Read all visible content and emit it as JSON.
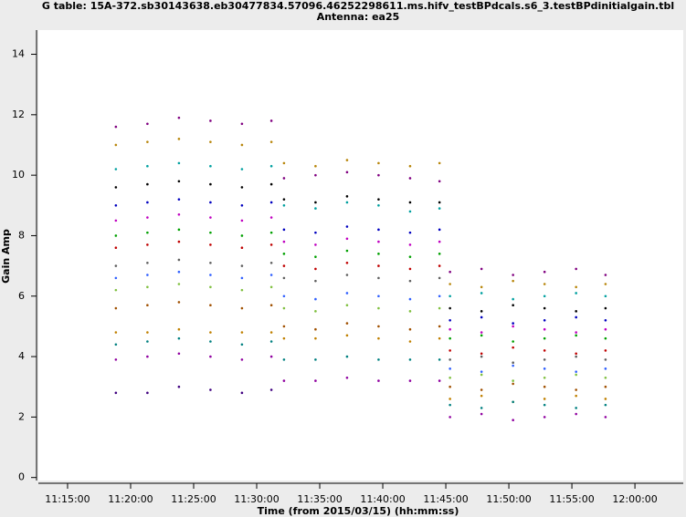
{
  "chart_data": {
    "type": "scatter",
    "title": "G table: 15A-372.sb30143638.eb30477834.57096.46252298611.ms.hifv_testBPdcals.s6_3.testBPdinitialgain.tbl",
    "subtitle": "Antenna: ea25",
    "x_label": "Time (from 2015/03/15) (hh:mm:ss)",
    "y_label": "Gain Amp",
    "xlim": [
      40361,
      43430
    ],
    "ylim": [
      -0.1,
      14.8
    ],
    "xticks": [
      {
        "value": 40500,
        "label": "11:15:00"
      },
      {
        "value": 40800,
        "label": "11:20:00"
      },
      {
        "value": 41100,
        "label": "11:25:00"
      },
      {
        "value": 41400,
        "label": "11:30:00"
      },
      {
        "value": 41700,
        "label": "11:35:00"
      },
      {
        "value": 42000,
        "label": "11:40:00"
      },
      {
        "value": 42300,
        "label": "11:45:00"
      },
      {
        "value": 42600,
        "label": "11:50:00"
      },
      {
        "value": 42900,
        "label": "11:55:00"
      },
      {
        "value": 43200,
        "label": "12:00:00"
      }
    ],
    "yticks": [
      0,
      2,
      4,
      6,
      8,
      10,
      12,
      14
    ],
    "x": [
      40730,
      40880,
      41030,
      41180,
      41330,
      41470,
      41530,
      41680,
      41830,
      41980,
      42130,
      42270,
      42320,
      42470,
      42620,
      42770,
      42920,
      43060
    ],
    "series": [
      {
        "color": "#800080",
        "values": [
          11.6,
          11.7,
          11.9,
          11.8,
          11.7,
          11.8,
          9.9,
          10.0,
          10.1,
          10.0,
          9.9,
          9.8,
          6.8,
          6.9,
          6.7,
          6.8,
          6.9,
          6.7
        ]
      },
      {
        "color": "#b8860b",
        "values": [
          11.0,
          11.1,
          11.2,
          11.1,
          11.0,
          11.1,
          10.4,
          10.3,
          10.5,
          10.4,
          10.3,
          10.4,
          6.4,
          6.3,
          6.5,
          6.4,
          6.3,
          6.4
        ]
      },
      {
        "color": "#00a0a0",
        "values": [
          10.2,
          10.3,
          10.4,
          10.3,
          10.2,
          10.3,
          9.0,
          8.9,
          9.1,
          9.0,
          8.8,
          8.9,
          6.0,
          6.1,
          5.9,
          6.0,
          6.1,
          6.0
        ]
      },
      {
        "color": "#000000",
        "values": [
          9.6,
          9.7,
          9.8,
          9.7,
          9.6,
          9.7,
          9.2,
          9.1,
          9.3,
          9.2,
          9.1,
          9.1,
          5.6,
          5.5,
          5.7,
          5.6,
          5.5,
          5.6
        ]
      },
      {
        "color": "#0000c0",
        "values": [
          9.0,
          9.1,
          9.2,
          9.1,
          9.0,
          9.1,
          8.2,
          8.1,
          8.3,
          8.2,
          8.1,
          8.2,
          5.2,
          5.3,
          5.1,
          5.2,
          5.3,
          5.2
        ]
      },
      {
        "color": "#c000c0",
        "values": [
          8.5,
          8.6,
          8.7,
          8.6,
          8.5,
          8.6,
          7.8,
          7.7,
          7.9,
          7.8,
          7.7,
          7.8,
          4.9,
          4.8,
          5.0,
          4.9,
          4.8,
          4.9
        ]
      },
      {
        "color": "#00a000",
        "values": [
          8.0,
          8.1,
          8.2,
          8.1,
          8.0,
          8.1,
          7.4,
          7.3,
          7.5,
          7.4,
          7.3,
          7.4,
          4.6,
          4.7,
          4.5,
          4.6,
          4.7,
          4.6
        ]
      },
      {
        "color": "#c00000",
        "values": [
          7.6,
          7.7,
          7.8,
          7.7,
          7.6,
          7.7,
          7.0,
          6.9,
          7.1,
          7.0,
          6.9,
          7.0,
          4.2,
          4.1,
          4.3,
          4.2,
          4.1,
          4.2
        ]
      },
      {
        "color": "#606060",
        "values": [
          7.0,
          7.1,
          7.2,
          7.1,
          7.0,
          7.1,
          6.6,
          6.5,
          6.7,
          6.6,
          6.5,
          6.6,
          3.9,
          4.0,
          3.8,
          3.9,
          4.0,
          3.9
        ]
      },
      {
        "color": "#3060ff",
        "values": [
          6.6,
          6.7,
          6.8,
          6.7,
          6.6,
          6.7,
          6.0,
          5.9,
          6.1,
          6.0,
          5.9,
          6.0,
          3.6,
          3.5,
          3.7,
          3.6,
          3.5,
          3.6
        ]
      },
      {
        "color": "#80c040",
        "values": [
          6.2,
          6.3,
          6.4,
          6.3,
          6.2,
          6.3,
          5.6,
          5.5,
          5.7,
          5.6,
          5.5,
          5.6,
          3.3,
          3.4,
          3.2,
          3.3,
          3.4,
          3.3
        ]
      },
      {
        "color": "#a05000",
        "values": [
          5.6,
          5.7,
          5.8,
          5.7,
          5.6,
          5.7,
          5.0,
          4.9,
          5.1,
          5.0,
          4.9,
          5.0,
          3.0,
          2.9,
          3.1,
          3.0,
          2.9,
          3.0
        ]
      },
      {
        "color": "#c08000",
        "values": [
          4.8,
          4.8,
          4.9,
          4.8,
          4.8,
          4.8,
          4.6,
          4.6,
          4.7,
          4.6,
          4.5,
          4.6,
          2.6,
          2.7,
          2.5,
          2.6,
          2.7,
          2.6
        ]
      },
      {
        "color": "#008080",
        "values": [
          4.4,
          4.5,
          4.6,
          4.5,
          4.4,
          4.5,
          3.9,
          3.9,
          4.0,
          3.9,
          3.9,
          3.9,
          2.4,
          2.3,
          2.5,
          2.4,
          2.3,
          2.4
        ]
      },
      {
        "color": "#9000a0",
        "values": [
          3.9,
          4.0,
          4.1,
          4.0,
          3.9,
          4.0,
          3.2,
          3.2,
          3.3,
          3.2,
          3.2,
          3.2,
          2.0,
          2.1,
          1.9,
          2.0,
          2.1,
          2.0
        ]
      },
      {
        "color": "#400080",
        "values": [
          2.8,
          2.8,
          3.0,
          2.9,
          2.8,
          2.9,
          null,
          null,
          null,
          null,
          null,
          null,
          null,
          null,
          null,
          null,
          null,
          null
        ]
      }
    ]
  }
}
